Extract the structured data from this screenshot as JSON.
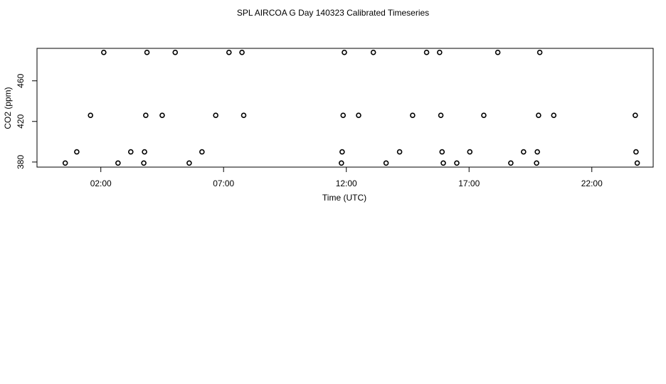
{
  "chart_data": {
    "type": "scatter",
    "title": "SPL AIRCOA G  Day 140323  Calibrated Timeseries",
    "xlabel": "Time (UTC)",
    "ylabel": "CO2 (ppm)",
    "xlim_hours": [
      -0.6,
      24.5
    ],
    "ylim": [
      375,
      492
    ],
    "x_ticks": [
      {
        "value": 2,
        "label": "02:00"
      },
      {
        "value": 7,
        "label": "07:00"
      },
      {
        "value": 12,
        "label": "12:00"
      },
      {
        "value": 17,
        "label": "17:00"
      },
      {
        "value": 22,
        "label": "22:00"
      }
    ],
    "y_ticks": [
      {
        "value": 380,
        "label": "380"
      },
      {
        "value": 420,
        "label": "420"
      },
      {
        "value": 460,
        "label": "460"
      }
    ],
    "grid": false,
    "marker": "open-circle",
    "points": [
      {
        "x": 0.55,
        "y": 379
      },
      {
        "x": 1.02,
        "y": 390
      },
      {
        "x": 1.58,
        "y": 426
      },
      {
        "x": 2.12,
        "y": 488
      },
      {
        "x": 2.7,
        "y": 379
      },
      {
        "x": 3.22,
        "y": 390
      },
      {
        "x": 3.75,
        "y": 379
      },
      {
        "x": 3.78,
        "y": 390
      },
      {
        "x": 3.83,
        "y": 426
      },
      {
        "x": 3.88,
        "y": 488
      },
      {
        "x": 4.5,
        "y": 426
      },
      {
        "x": 5.03,
        "y": 488
      },
      {
        "x": 5.6,
        "y": 379
      },
      {
        "x": 6.12,
        "y": 390
      },
      {
        "x": 6.68,
        "y": 426
      },
      {
        "x": 7.22,
        "y": 488
      },
      {
        "x": 7.75,
        "y": 488
      },
      {
        "x": 7.82,
        "y": 426
      },
      {
        "x": 11.8,
        "y": 379
      },
      {
        "x": 11.83,
        "y": 390
      },
      {
        "x": 11.87,
        "y": 426
      },
      {
        "x": 11.92,
        "y": 488
      },
      {
        "x": 12.5,
        "y": 426
      },
      {
        "x": 13.1,
        "y": 488
      },
      {
        "x": 13.62,
        "y": 379
      },
      {
        "x": 14.17,
        "y": 390
      },
      {
        "x": 14.7,
        "y": 426
      },
      {
        "x": 15.27,
        "y": 488
      },
      {
        "x": 15.8,
        "y": 488
      },
      {
        "x": 15.85,
        "y": 426
      },
      {
        "x": 15.9,
        "y": 390
      },
      {
        "x": 15.95,
        "y": 379
      },
      {
        "x": 16.5,
        "y": 379
      },
      {
        "x": 17.03,
        "y": 390
      },
      {
        "x": 17.6,
        "y": 426
      },
      {
        "x": 18.17,
        "y": 488
      },
      {
        "x": 18.7,
        "y": 379
      },
      {
        "x": 19.22,
        "y": 390
      },
      {
        "x": 19.75,
        "y": 379
      },
      {
        "x": 19.78,
        "y": 390
      },
      {
        "x": 19.83,
        "y": 426
      },
      {
        "x": 19.88,
        "y": 488
      },
      {
        "x": 20.45,
        "y": 426
      },
      {
        "x": 23.77,
        "y": 426
      },
      {
        "x": 23.8,
        "y": 390
      },
      {
        "x": 23.85,
        "y": 379
      }
    ]
  }
}
